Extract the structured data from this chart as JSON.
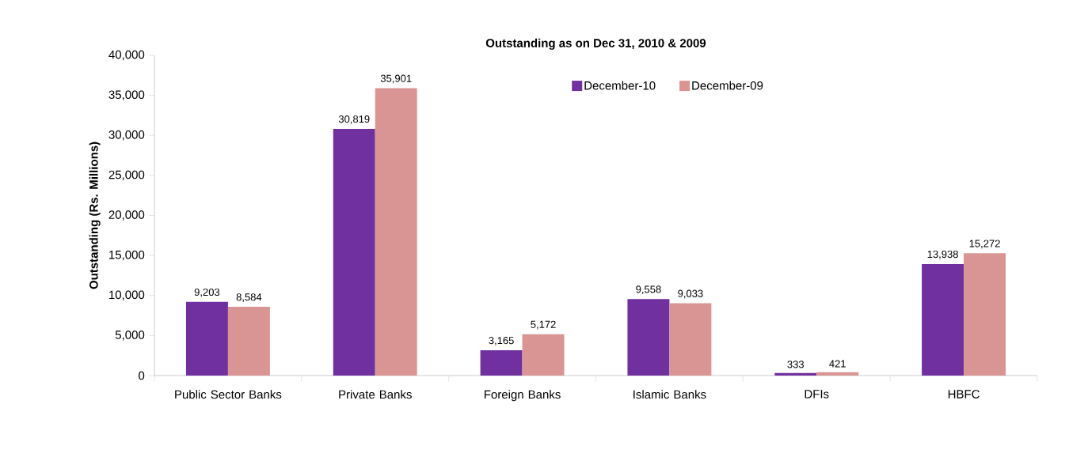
{
  "chart_data": {
    "type": "bar",
    "title": "Outstanding as on Dec 31, 2010 & 2009",
    "ylabel": "Outstanding (Rs. Millions)",
    "categories": [
      "Public Sector Banks",
      "Private Banks",
      "Foreign Banks",
      "Islamic Banks",
      "DFIs",
      "HBFC"
    ],
    "series": [
      {
        "name": "December-10",
        "color": "#7030a0",
        "values": [
          9203,
          30819,
          3165,
          9558,
          333,
          13938
        ],
        "value_labels": [
          "9,203",
          "30,819",
          "3,165",
          "9,558",
          "333",
          "13,938"
        ]
      },
      {
        "name": "December-09",
        "color": "#d99594",
        "values": [
          8584,
          35901,
          5172,
          9033,
          421,
          15272
        ],
        "value_labels": [
          "8,584",
          "35,901",
          "5,172",
          "9,033",
          "421",
          "15,272"
        ]
      }
    ],
    "ylim": [
      0,
      40000
    ],
    "yticks": [
      0,
      {
        "value": 5000,
        "label": "5,000"
      },
      {
        "value": 10000,
        "label": "10,000"
      },
      {
        "value": 15000,
        "label": "15,000"
      },
      {
        "value": 20000,
        "label": "20,000"
      },
      {
        "value": 25000,
        "label": "25,000"
      },
      {
        "value": 30000,
        "label": "30,000"
      },
      {
        "value": 35000,
        "label": "35,000"
      },
      {
        "value": 40000,
        "label": "40,000"
      }
    ],
    "grid": false,
    "legend": "top right"
  }
}
